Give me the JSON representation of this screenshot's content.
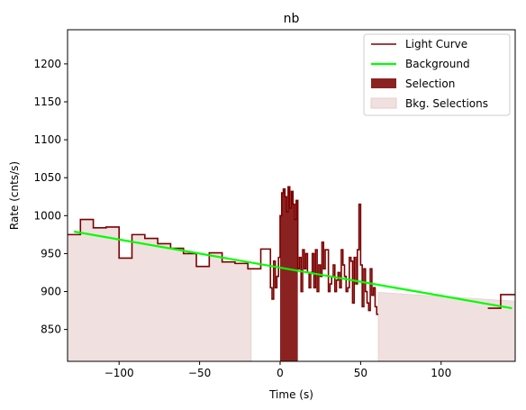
{
  "chart_data": {
    "type": "line",
    "title": "nb",
    "xlabel": "Time (s)",
    "ylabel": "Rate (cnts/s)",
    "xlim": [
      -132,
      146
    ],
    "ylim": [
      808,
      1245
    ],
    "xticks": [
      -100,
      -50,
      0,
      50,
      100
    ],
    "xtick_labels": [
      "−100",
      "−50",
      "0",
      "50",
      "100"
    ],
    "yticks": [
      850,
      900,
      950,
      1000,
      1050,
      1100,
      1150,
      1200
    ],
    "ytick_labels": [
      "850",
      "900",
      "950",
      "1000",
      "1050",
      "1100",
      "1150",
      "1200"
    ],
    "legend_position": "top-right",
    "colors": {
      "light_curve": "#7b0000",
      "background": "#00ff00",
      "selection": "#8b2222",
      "bkg_selection": "#f0e0e0"
    },
    "legend": [
      {
        "key": "light_curve",
        "label": "Light Curve",
        "kind": "line"
      },
      {
        "key": "background",
        "label": "Background",
        "kind": "line"
      },
      {
        "key": "selection",
        "label": "Selection",
        "kind": "patch"
      },
      {
        "key": "bkg_selection",
        "label": "Bkg. Selections",
        "kind": "patch"
      }
    ],
    "background_fit": {
      "x": [
        -128,
        144
      ],
      "y": [
        979,
        878
      ]
    },
    "selection": {
      "x_start": 0,
      "x_end": 11,
      "label": "Selection"
    },
    "bkg_selections": [
      {
        "x_start": -132,
        "x_end": -18
      },
      {
        "x_start": 61,
        "x_end": 146
      }
    ],
    "light_curve": {
      "steps": [
        [
          -132,
          975
        ],
        [
          -124,
          995
        ],
        [
          -116,
          984
        ],
        [
          -108,
          985
        ],
        [
          -100,
          944
        ],
        [
          -92,
          975
        ],
        [
          -84,
          970
        ],
        [
          -76,
          963
        ],
        [
          -68,
          957
        ],
        [
          -60,
          950
        ],
        [
          -52,
          933
        ],
        [
          -44,
          951
        ],
        [
          -36,
          939
        ],
        [
          -28,
          937
        ],
        [
          -20,
          930
        ],
        [
          -12,
          956
        ],
        [
          -6,
          905
        ],
        [
          -5,
          890
        ],
        [
          -4,
          940
        ],
        [
          -3,
          905
        ],
        [
          -2,
          920
        ],
        [
          -1,
          945
        ],
        [
          0,
          1000
        ],
        [
          1,
          1030
        ],
        [
          2,
          1035
        ],
        [
          3,
          1025
        ],
        [
          4,
          1005
        ],
        [
          5,
          1038
        ],
        [
          6,
          1010
        ],
        [
          7,
          1032
        ],
        [
          8,
          1015
        ],
        [
          9,
          995
        ],
        [
          10,
          1020
        ],
        [
          11,
          930
        ],
        [
          12,
          945
        ],
        [
          13,
          900
        ],
        [
          14,
          955
        ],
        [
          15,
          930
        ],
        [
          16,
          950
        ],
        [
          17,
          925
        ],
        [
          18,
          905
        ],
        [
          19,
          925
        ],
        [
          20,
          950
        ],
        [
          21,
          905
        ],
        [
          22,
          955
        ],
        [
          23,
          900
        ],
        [
          24,
          935
        ],
        [
          25,
          920
        ],
        [
          26,
          965
        ],
        [
          27,
          930
        ],
        [
          28,
          955
        ],
        [
          29,
          955
        ],
        [
          30,
          900
        ],
        [
          31,
          910
        ],
        [
          32,
          920
        ],
        [
          33,
          935
        ],
        [
          34,
          900
        ],
        [
          35,
          915
        ],
        [
          36,
          925
        ],
        [
          37,
          905
        ],
        [
          38,
          955
        ],
        [
          39,
          935
        ],
        [
          40,
          920
        ],
        [
          41,
          900
        ],
        [
          42,
          905
        ],
        [
          43,
          945
        ],
        [
          44,
          940
        ],
        [
          45,
          885
        ],
        [
          46,
          945
        ],
        [
          47,
          910
        ],
        [
          48,
          955
        ],
        [
          49,
          1015
        ],
        [
          50,
          935
        ],
        [
          51,
          880
        ],
        [
          52,
          930
        ],
        [
          53,
          900
        ],
        [
          54,
          885
        ],
        [
          55,
          875
        ],
        [
          56,
          930
        ],
        [
          57,
          895
        ],
        [
          58,
          905
        ],
        [
          59,
          880
        ],
        [
          60,
          870
        ],
        [
          61,
          870
        ]
      ],
      "x_end": 61,
      "tail_steps": [
        [
          129,
          878
        ],
        [
          137,
          896
        ]
      ],
      "tail_end": 146
    }
  }
}
